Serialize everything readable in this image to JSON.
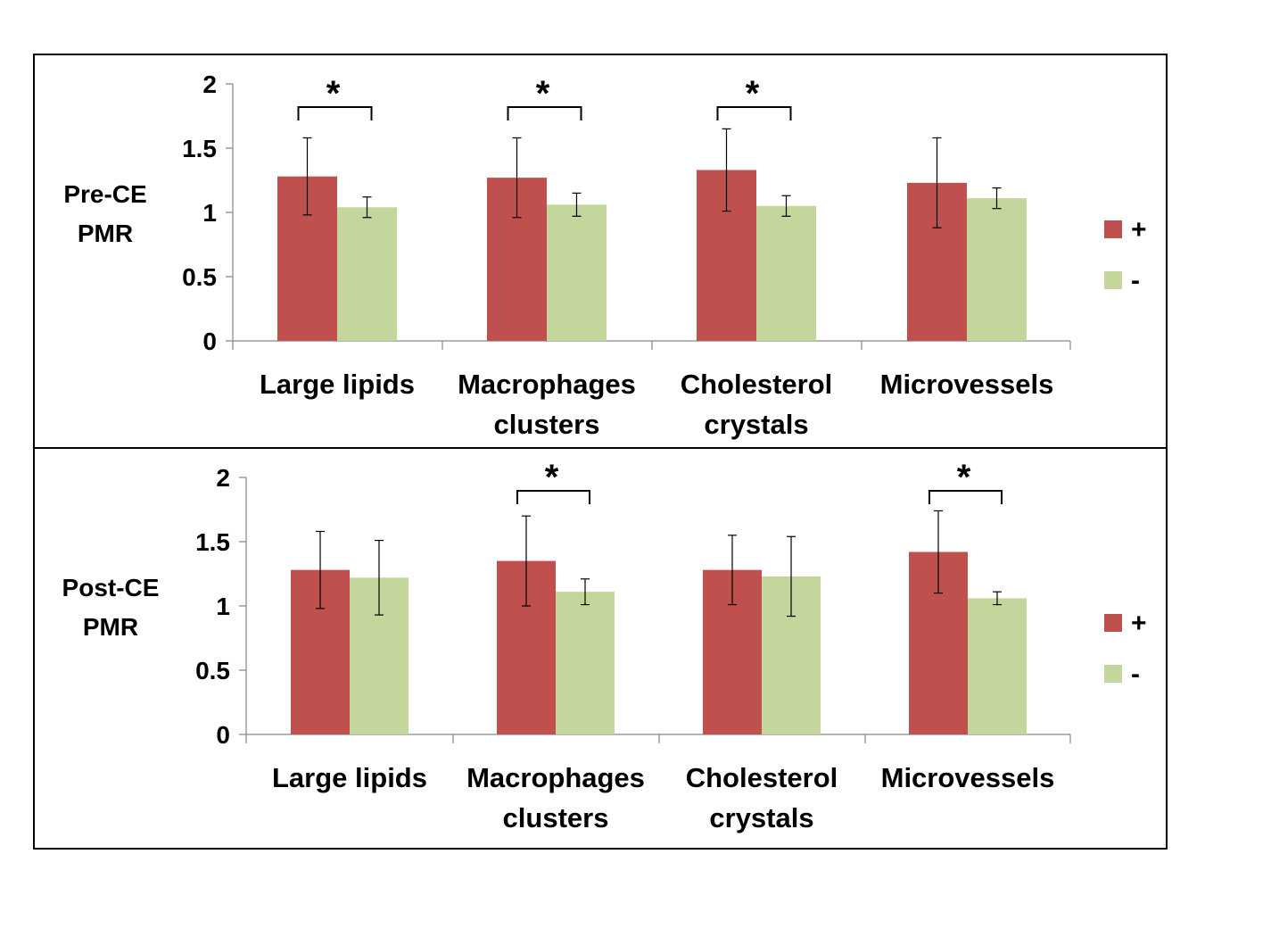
{
  "chart_data": [
    {
      "type": "bar",
      "title": "",
      "ylabel": [
        "Pre-CE",
        "PMR"
      ],
      "xlabel": "",
      "ylim": [
        0,
        2
      ],
      "yticks": [
        "0",
        "0.5",
        "1",
        "1.5",
        "2"
      ],
      "categories": [
        [
          "Large lipids"
        ],
        [
          "Macrophages",
          "clusters"
        ],
        [
          "Cholesterol",
          "crystals"
        ],
        [
          "Microvessels"
        ]
      ],
      "series": [
        {
          "name": "+",
          "color": "#C0504D",
          "values": [
            1.28,
            1.27,
            1.33,
            1.23
          ],
          "errors": [
            0.3,
            0.31,
            0.32,
            0.35
          ]
        },
        {
          "name": "-",
          "color": "#C3D69B",
          "values": [
            1.04,
            1.06,
            1.05,
            1.11
          ],
          "errors": [
            0.08,
            0.09,
            0.08,
            0.08
          ]
        }
      ],
      "significance": [
        "*",
        "*",
        "*",
        ""
      ],
      "legend": "right"
    },
    {
      "type": "bar",
      "title": "",
      "ylabel": [
        "Post-CE",
        "PMR"
      ],
      "xlabel": "",
      "ylim": [
        0,
        2
      ],
      "yticks": [
        "0",
        "0.5",
        "1",
        "1.5",
        "2"
      ],
      "categories": [
        [
          "Large lipids"
        ],
        [
          "Macrophages",
          "clusters"
        ],
        [
          "Cholesterol",
          "crystals"
        ],
        [
          "Microvessels"
        ]
      ],
      "series": [
        {
          "name": "+",
          "color": "#C0504D",
          "values": [
            1.28,
            1.35,
            1.28,
            1.42
          ],
          "errors": [
            0.3,
            0.35,
            0.27,
            0.32
          ]
        },
        {
          "name": "-",
          "color": "#C3D69B",
          "values": [
            1.22,
            1.11,
            1.23,
            1.06
          ],
          "errors": [
            0.29,
            0.1,
            0.31,
            0.05
          ]
        }
      ],
      "significance": [
        "",
        "*",
        "",
        "*"
      ],
      "legend": "right"
    }
  ]
}
